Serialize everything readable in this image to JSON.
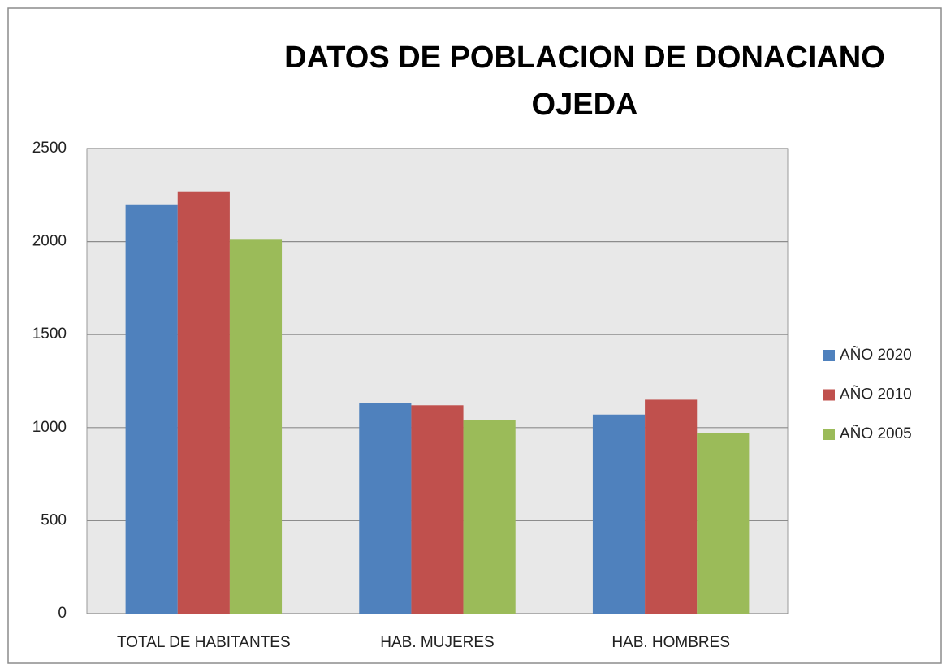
{
  "chart_data": {
    "type": "bar",
    "title": "DATOS DE POBLACION DE DONACIANO OJEDA",
    "categories": [
      "TOTAL DE HABITANTES",
      "HAB. MUJERES",
      "HAB. HOMBRES"
    ],
    "series": [
      {
        "name": "AÑO 2020",
        "color": "#4f81bd",
        "values": [
          2200,
          1130,
          1070
        ]
      },
      {
        "name": "AÑO 2010",
        "color": "#c0504d",
        "values": [
          2270,
          1120,
          1150
        ]
      },
      {
        "name": "AÑO 2005",
        "color": "#9bbb59",
        "values": [
          2010,
          1040,
          970
        ]
      }
    ],
    "ylim": [
      0,
      2500
    ],
    "yticks": [
      0,
      500,
      1000,
      1500,
      2000,
      2500
    ],
    "grid": true,
    "legend": "right"
  }
}
